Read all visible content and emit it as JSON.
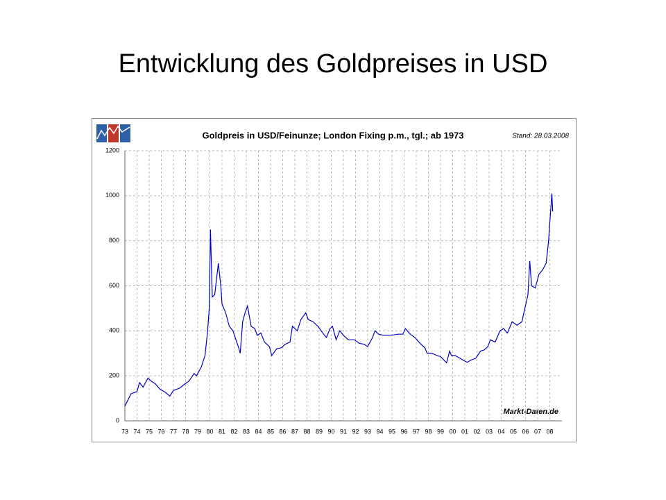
{
  "slide_title": "Entwicklung des Goldpreises in USD",
  "chart_data": {
    "type": "line",
    "title": "Goldpreis in USD/Feinunze; London Fixing p.m., tgl.; ab 1973",
    "note": "Stand: 28.03.2008",
    "source": "Markt-Daten.de",
    "x": [
      1973.0,
      1973.5,
      1974.0,
      1974.2,
      1974.5,
      1974.9,
      1975.2,
      1975.5,
      1975.9,
      1976.3,
      1976.7,
      1977.0,
      1977.5,
      1977.9,
      1978.3,
      1978.7,
      1978.9,
      1979.3,
      1979.6,
      1979.8,
      1979.95,
      1980.05,
      1980.2,
      1980.4,
      1980.7,
      1980.9,
      1981.0,
      1981.3,
      1981.6,
      1981.9,
      1982.4,
      1982.5,
      1982.7,
      1982.9,
      1983.1,
      1983.4,
      1983.7,
      1983.9,
      1984.2,
      1984.5,
      1984.9,
      1985.1,
      1985.5,
      1985.9,
      1986.2,
      1986.6,
      1986.8,
      1987.2,
      1987.5,
      1987.9,
      1988.1,
      1988.5,
      1988.9,
      1989.3,
      1989.6,
      1989.9,
      1990.1,
      1990.4,
      1990.7,
      1991.0,
      1991.4,
      1991.9,
      1992.3,
      1992.7,
      1993.0,
      1993.4,
      1993.6,
      1993.9,
      1994.3,
      1994.9,
      1995.5,
      1995.9,
      1996.1,
      1996.5,
      1996.9,
      1997.3,
      1997.7,
      1997.9,
      1998.3,
      1998.7,
      1999.0,
      1999.5,
      1999.75,
      1999.9,
      2000.2,
      2000.6,
      2000.9,
      2001.2,
      2001.5,
      2001.9,
      2002.3,
      2002.6,
      2002.9,
      2003.1,
      2003.5,
      2003.9,
      2004.2,
      2004.5,
      2004.9,
      2005.3,
      2005.7,
      2005.95,
      2006.2,
      2006.35,
      2006.5,
      2006.8,
      2007.1,
      2007.4,
      2007.7,
      2007.9,
      2008.0,
      2008.17,
      2008.24
    ],
    "series": [
      {
        "name": "Goldpreis",
        "color": "#0000c0",
        "values": [
          65,
          120,
          130,
          170,
          150,
          190,
          175,
          165,
          140,
          128,
          110,
          135,
          145,
          162,
          178,
          210,
          200,
          240,
          290,
          390,
          500,
          850,
          550,
          560,
          700,
          600,
          520,
          480,
          420,
          400,
          320,
          300,
          440,
          480,
          510,
          420,
          410,
          380,
          390,
          350,
          330,
          290,
          320,
          325,
          340,
          350,
          420,
          400,
          450,
          480,
          450,
          440,
          420,
          390,
          370,
          410,
          420,
          360,
          400,
          380,
          360,
          360,
          345,
          340,
          330,
          370,
          400,
          385,
          380,
          380,
          385,
          385,
          410,
          385,
          370,
          345,
          325,
          300,
          300,
          290,
          285,
          258,
          310,
          290,
          290,
          278,
          268,
          260,
          270,
          278,
          310,
          315,
          330,
          360,
          350,
          400,
          410,
          390,
          440,
          425,
          440,
          500,
          560,
          710,
          600,
          590,
          650,
          670,
          700,
          800,
          880,
          1010,
          930
        ]
      }
    ],
    "xlim": [
      1973,
      2009
    ],
    "xticks": [
      {
        "value": 1973,
        "label": "73"
      },
      {
        "value": 1974,
        "label": "74"
      },
      {
        "value": 1975,
        "label": "75"
      },
      {
        "value": 1976,
        "label": "76"
      },
      {
        "value": 1977,
        "label": "77"
      },
      {
        "value": 1978,
        "label": "78"
      },
      {
        "value": 1979,
        "label": "79"
      },
      {
        "value": 1980,
        "label": "80"
      },
      {
        "value": 1981,
        "label": "81"
      },
      {
        "value": 1982,
        "label": "82"
      },
      {
        "value": 1983,
        "label": "83"
      },
      {
        "value": 1984,
        "label": "84"
      },
      {
        "value": 1985,
        "label": "85"
      },
      {
        "value": 1986,
        "label": "86"
      },
      {
        "value": 1987,
        "label": "87"
      },
      {
        "value": 1988,
        "label": "88"
      },
      {
        "value": 1989,
        "label": "89"
      },
      {
        "value": 1990,
        "label": "90"
      },
      {
        "value": 1991,
        "label": "91"
      },
      {
        "value": 1992,
        "label": "92"
      },
      {
        "value": 1993,
        "label": "93"
      },
      {
        "value": 1994,
        "label": "94"
      },
      {
        "value": 1995,
        "label": "95"
      },
      {
        "value": 1996,
        "label": "96"
      },
      {
        "value": 1997,
        "label": "97"
      },
      {
        "value": 1998,
        "label": "98"
      },
      {
        "value": 1999,
        "label": "99"
      },
      {
        "value": 2000,
        "label": "00"
      },
      {
        "value": 2001,
        "label": "01"
      },
      {
        "value": 2002,
        "label": "02"
      },
      {
        "value": 2003,
        "label": "03"
      },
      {
        "value": 2004,
        "label": "04"
      },
      {
        "value": 2005,
        "label": "05"
      },
      {
        "value": 2006,
        "label": "06"
      },
      {
        "value": 2007,
        "label": "07"
      },
      {
        "value": 2008,
        "label": "08"
      }
    ],
    "ylim": [
      0,
      1200
    ],
    "yticks": [
      0,
      200,
      400,
      600,
      800,
      1000,
      1200
    ],
    "grid": true
  }
}
